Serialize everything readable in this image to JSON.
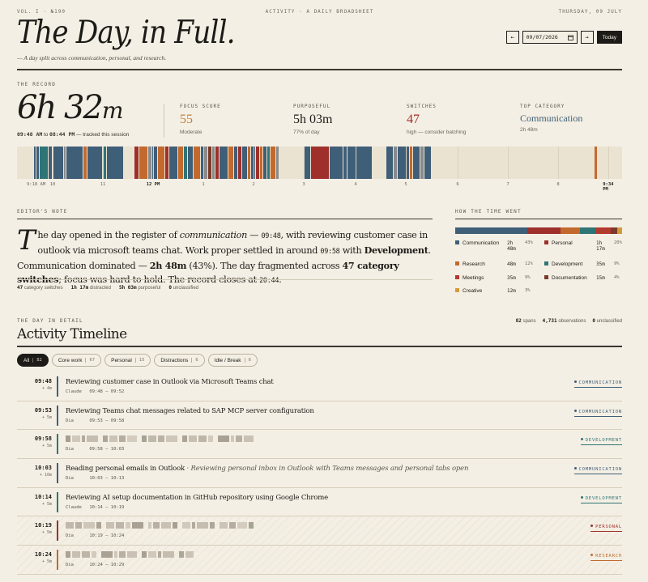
{
  "masthead": {
    "volume": "VOL. I · №190",
    "section": "ACTIVITY · A DAILY BROADSHEET",
    "dateline": "THURSDAY, 09 JULY",
    "title": "The Day, in Full.",
    "subtitle": "— A day split across communication, personal, and research.",
    "date_value": "09/07/2026",
    "prev": "←",
    "next": "→",
    "today": "Today"
  },
  "record": {
    "label": "THE RECORD",
    "hours": "6h",
    "minutes": "32",
    "minutes_unit": "m",
    "start": "09:48 AM",
    "to": "to",
    "end": "08:44 PM",
    "tracked": "— tracked this session",
    "stats": [
      {
        "label": "FOCUS SCORE",
        "value": "55",
        "sub": "Moderate",
        "color": "#c4813b"
      },
      {
        "label": "PURPOSEFUL",
        "value": "5h 03m",
        "sub": "77% of day",
        "color": "#1d1b18"
      },
      {
        "label": "SWITCHES",
        "value": "47",
        "sub": "high — consider batching",
        "color": "#9e2f2a"
      },
      {
        "label": "TOP CATEGORY",
        "value": "Communication",
        "sub": "2h 48m",
        "color": "#3f5e78"
      }
    ],
    "ticks": [
      "9:18 AM",
      "10",
      "11",
      "12 PM",
      "1",
      "2",
      "3",
      "4",
      "5",
      "6",
      "7",
      "8",
      "9:34 PM"
    ]
  },
  "editor": {
    "label": "EDITOR'S NOTE",
    "dropcap": "T",
    "p1": "he day opened in the register of ",
    "p1_em": "communication",
    "p1_b": " — ",
    "p1_time": "09:48",
    "p1_c": ", with reviewing customer case in outlook via microsoft teams chat. Work proper settled in around ",
    "p1_time2": "09:58",
    "p1_d": " with ",
    "p1_dev": "Development",
    "p1_e": ". Communication dominated — ",
    "p1_dom": "2h 48m",
    "p1_f": " (43%). The day fragmented across ",
    "p1_sw": "47 category switches",
    "p1_g": "; focus was hard to hold. The record closes at ",
    "p1_close": "20:44",
    "p1_h": ".",
    "stats": [
      {
        "v": "47",
        "l": "category switches"
      },
      {
        "v": "1h 17m",
        "l": "distracted"
      },
      {
        "v": "5h 03m",
        "l": "purposeful"
      },
      {
        "v": "0",
        "l": "unclassified"
      }
    ]
  },
  "how": {
    "label": "HOW THE TIME WENT",
    "items": [
      {
        "name": "Communication",
        "time": "2h 48m",
        "pct": "43%",
        "color": "#3f5e78",
        "share": 43
      },
      {
        "name": "Personal",
        "time": "1h 17m",
        "pct": "20%",
        "color": "#9e2f2a",
        "share": 20
      },
      {
        "name": "Research",
        "time": "48m",
        "pct": "12%",
        "color": "#c26a2e",
        "share": 12
      },
      {
        "name": "Development",
        "time": "35m",
        "pct": "9%",
        "color": "#2f7576",
        "share": 9
      },
      {
        "name": "Meetings",
        "time": "35m",
        "pct": "9%",
        "color": "#b23a2f",
        "share": 9
      },
      {
        "name": "Documentation",
        "time": "15m",
        "pct": "4%",
        "color": "#7a3a2a",
        "share": 4
      },
      {
        "name": "Creative",
        "time": "12m",
        "pct": "3%",
        "color": "#d49a3a",
        "share": 3
      }
    ]
  },
  "timeline": {
    "label": "THE DAY IN DETAIL",
    "title": "Activity Timeline",
    "counts": [
      {
        "v": "82",
        "l": "spans"
      },
      {
        "v": "4,731",
        "l": "observations"
      },
      {
        "v": "0",
        "l": "unclassified"
      }
    ],
    "chips": [
      {
        "label": "All",
        "n": "82"
      },
      {
        "label": "Core work",
        "n": "67"
      },
      {
        "label": "Personal",
        "n": "15"
      },
      {
        "label": "Distractions",
        "n": "6"
      },
      {
        "label": "Idle / Break",
        "n": "6"
      }
    ],
    "rows": [
      {
        "time": "09:48",
        "dur": "+ 4m",
        "desc": "Reviewing customer case in Outlook via Microsoft Teams chat",
        "app": "Claude",
        "range": "09:48 – 09:52",
        "cat": "COMMUNICATION",
        "color": "#3f5e78"
      },
      {
        "time": "09:53",
        "dur": "+ 5m",
        "desc": "Reviewing Teams chat messages related to SAP MCP server configuration",
        "app": "Dia",
        "range": "09:53 – 09:58",
        "cat": "COMMUNICATION",
        "color": "#3f5e78"
      },
      {
        "time": "09:58",
        "dur": "+ 5m",
        "desc": "",
        "app": "Dia",
        "range": "09:58 – 10:03",
        "cat": "DEVELOPMENT",
        "color": "#2f7576"
      },
      {
        "time": "10:03",
        "dur": "+ 10m",
        "desc": "Reading personal emails in Outlook",
        "desc_em": "· Reviewing personal inbox in Outlook with Teams messages and personal tabs open",
        "app": "Dia",
        "range": "10:03 – 10:13",
        "cat": "COMMUNICATION",
        "color": "#3f5e78"
      },
      {
        "time": "10:14",
        "dur": "+ 5m",
        "desc": "Reviewing AI setup documentation in GitHub repository using Google Chrome",
        "app": "Claude",
        "range": "10:14 – 10:19",
        "cat": "DEVELOPMENT",
        "color": "#2f7576"
      },
      {
        "time": "10:19",
        "dur": "+ 5m",
        "desc": "",
        "app": "Dia",
        "range": "10:19 – 10:24",
        "cat": "PERSONAL",
        "color": "#9e2f2a"
      },
      {
        "time": "10:24",
        "dur": "+ 5m",
        "desc": "",
        "app": "Dia",
        "range": "10:24 – 10:29",
        "cat": "RESEARCH",
        "color": "#c26a2e"
      }
    ]
  }
}
